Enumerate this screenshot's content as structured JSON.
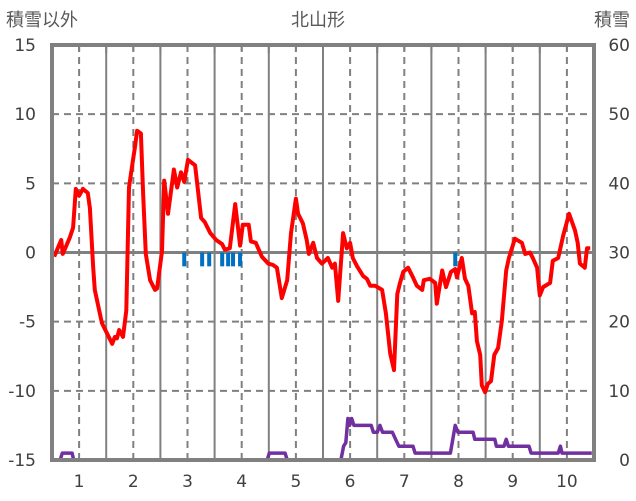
{
  "chart_data": {
    "type": "line",
    "title": "北山形",
    "ylabel_left": "積雪以外",
    "ylabel_right": "積雪",
    "xlim": [
      0.5,
      10.5
    ],
    "ylim_left": [
      -15,
      15
    ],
    "ylim_right": [
      0,
      60
    ],
    "x_ticks": [
      "1",
      "2",
      "3",
      "4",
      "5",
      "6",
      "7",
      "8",
      "9",
      "10"
    ],
    "y_ticks_left": [
      "15",
      "10",
      "5",
      "0",
      "-5",
      "-10",
      "-15"
    ],
    "y_ticks_right": [
      "60",
      "50",
      "40",
      "30",
      "20",
      "10",
      "0"
    ],
    "grid": true,
    "colors": {
      "temp": "#ff0000",
      "snow": "#7030a0",
      "bars": "#0070c0",
      "axis": "#808080"
    },
    "series": [
      {
        "name": "積雪以外",
        "axis": "left",
        "kind": "line",
        "color": "#ff0000",
        "points": [
          [
            0.54,
            -0.3
          ],
          [
            0.67,
            0.9
          ],
          [
            0.7,
            -0.1
          ],
          [
            0.83,
            1.1
          ],
          [
            0.89,
            1.8
          ],
          [
            0.94,
            4.6
          ],
          [
            1.0,
            4.1
          ],
          [
            1.07,
            4.6
          ],
          [
            1.16,
            4.3
          ],
          [
            1.2,
            3.2
          ],
          [
            1.26,
            -1.1
          ],
          [
            1.29,
            -2.7
          ],
          [
            1.42,
            -5.1
          ],
          [
            1.51,
            -5.8
          ],
          [
            1.61,
            -6.6
          ],
          [
            1.66,
            -6.1
          ],
          [
            1.7,
            -6.2
          ],
          [
            1.74,
            -5.6
          ],
          [
            1.81,
            -6.1
          ],
          [
            1.87,
            -4.2
          ],
          [
            1.92,
            4.7
          ],
          [
            1.98,
            6.3
          ],
          [
            2.03,
            7.6
          ],
          [
            2.07,
            8.8
          ],
          [
            2.14,
            8.6
          ],
          [
            2.18,
            4.3
          ],
          [
            2.23,
            -0.1
          ],
          [
            2.31,
            -2.0
          ],
          [
            2.4,
            -2.7
          ],
          [
            2.44,
            -2.6
          ],
          [
            2.53,
            0.1
          ],
          [
            2.57,
            5.2
          ],
          [
            2.64,
            2.8
          ],
          [
            2.75,
            6.0
          ],
          [
            2.81,
            4.7
          ],
          [
            2.88,
            5.8
          ],
          [
            2.94,
            5.1
          ],
          [
            3.01,
            6.7
          ],
          [
            3.14,
            6.3
          ],
          [
            3.25,
            2.5
          ],
          [
            3.32,
            2.2
          ],
          [
            3.42,
            1.4
          ],
          [
            3.53,
            0.9
          ],
          [
            3.64,
            0.6
          ],
          [
            3.69,
            0.2
          ],
          [
            3.78,
            0.3
          ],
          [
            3.88,
            3.5
          ],
          [
            3.97,
            0.5
          ],
          [
            4.02,
            2.0
          ],
          [
            4.13,
            2.0
          ],
          [
            4.17,
            0.8
          ],
          [
            4.26,
            0.7
          ],
          [
            4.37,
            -0.3
          ],
          [
            4.49,
            -0.8
          ],
          [
            4.58,
            -0.9
          ],
          [
            4.65,
            -1.1
          ],
          [
            4.74,
            -3.3
          ],
          [
            4.84,
            -2.0
          ],
          [
            4.91,
            1.4
          ],
          [
            5.0,
            3.9
          ],
          [
            5.04,
            2.8
          ],
          [
            5.13,
            2.1
          ],
          [
            5.2,
            0.9
          ],
          [
            5.24,
            -0.1
          ],
          [
            5.32,
            0.7
          ],
          [
            5.39,
            -0.4
          ],
          [
            5.48,
            -0.8
          ],
          [
            5.59,
            -0.4
          ],
          [
            5.67,
            -1.1
          ],
          [
            5.72,
            -0.8
          ],
          [
            5.78,
            -3.5
          ],
          [
            5.87,
            1.4
          ],
          [
            5.94,
            0.3
          ],
          [
            6.0,
            0.7
          ],
          [
            6.05,
            -0.4
          ],
          [
            6.13,
            -1.0
          ],
          [
            6.24,
            -1.7
          ],
          [
            6.31,
            -1.9
          ],
          [
            6.37,
            -2.4
          ],
          [
            6.46,
            -2.4
          ],
          [
            6.59,
            -2.7
          ],
          [
            6.66,
            -4.4
          ],
          [
            6.74,
            -7.3
          ],
          [
            6.81,
            -8.5
          ],
          [
            6.87,
            -3.0
          ],
          [
            6.92,
            -2.2
          ],
          [
            6.98,
            -1.4
          ],
          [
            7.07,
            -1.1
          ],
          [
            7.16,
            -1.8
          ],
          [
            7.23,
            -2.4
          ],
          [
            7.33,
            -2.7
          ],
          [
            7.36,
            -2.0
          ],
          [
            7.47,
            -1.9
          ],
          [
            7.57,
            -2.2
          ],
          [
            7.6,
            -3.7
          ],
          [
            7.7,
            -1.3
          ],
          [
            7.77,
            -2.5
          ],
          [
            7.86,
            -1.4
          ],
          [
            7.94,
            -1.2
          ],
          [
            7.97,
            -1.8
          ],
          [
            8.06,
            -0.4
          ],
          [
            8.12,
            -1.9
          ],
          [
            8.18,
            -2.4
          ],
          [
            8.25,
            -4.4
          ],
          [
            8.3,
            -4.3
          ],
          [
            8.34,
            -6.4
          ],
          [
            8.4,
            -7.4
          ],
          [
            8.43,
            -9.6
          ],
          [
            8.49,
            -10.1
          ],
          [
            8.54,
            -9.5
          ],
          [
            8.6,
            -9.3
          ],
          [
            8.66,
            -7.4
          ],
          [
            8.73,
            -6.9
          ],
          [
            8.8,
            -4.9
          ],
          [
            8.88,
            -1.3
          ],
          [
            8.93,
            -0.4
          ],
          [
            9.04,
            1.0
          ],
          [
            9.17,
            0.7
          ],
          [
            9.23,
            -0.1
          ],
          [
            9.32,
            0.0
          ],
          [
            9.37,
            -0.4
          ],
          [
            9.45,
            -1.1
          ],
          [
            9.5,
            -3.1
          ],
          [
            9.56,
            -2.5
          ],
          [
            9.69,
            -2.2
          ],
          [
            9.74,
            -0.6
          ],
          [
            9.84,
            -0.4
          ],
          [
            9.93,
            1.2
          ],
          [
            10.04,
            2.8
          ],
          [
            10.15,
            1.6
          ],
          [
            10.2,
            0.7
          ],
          [
            10.24,
            -0.8
          ],
          [
            10.33,
            -1.1
          ],
          [
            10.37,
            0.3
          ],
          [
            10.43,
            0.3
          ]
        ]
      },
      {
        "name": "積雪",
        "axis": "right",
        "kind": "line",
        "color": "#7030a0",
        "points": [
          [
            0.5,
            0
          ],
          [
            0.65,
            0
          ],
          [
            0.69,
            1
          ],
          [
            0.87,
            1
          ],
          [
            0.9,
            0
          ],
          [
            4.47,
            0
          ],
          [
            4.51,
            1
          ],
          [
            4.8,
            1
          ],
          [
            4.84,
            0
          ],
          [
            5.83,
            0
          ],
          [
            5.88,
            2
          ],
          [
            5.92,
            2.5
          ],
          [
            5.96,
            6
          ],
          [
            5.99,
            5
          ],
          [
            6.03,
            6
          ],
          [
            6.07,
            5
          ],
          [
            6.39,
            5
          ],
          [
            6.43,
            4
          ],
          [
            6.5,
            4
          ],
          [
            6.55,
            5
          ],
          [
            6.6,
            4
          ],
          [
            6.78,
            4
          ],
          [
            6.84,
            3
          ],
          [
            6.9,
            2
          ],
          [
            7.16,
            2
          ],
          [
            7.2,
            1
          ],
          [
            7.85,
            1
          ],
          [
            7.94,
            5
          ],
          [
            7.99,
            4
          ],
          [
            8.27,
            4
          ],
          [
            8.3,
            3
          ],
          [
            8.67,
            3
          ],
          [
            8.7,
            2
          ],
          [
            8.84,
            2
          ],
          [
            8.88,
            3
          ],
          [
            8.92,
            2
          ],
          [
            9.3,
            2
          ],
          [
            9.34,
            1
          ],
          [
            9.84,
            1
          ],
          [
            9.88,
            2
          ],
          [
            9.91,
            1
          ],
          [
            10.46,
            1
          ]
        ]
      },
      {
        "name": "bars",
        "axis": "left",
        "kind": "bar",
        "color": "#0070c0",
        "x": [
          2.94,
          3.27,
          3.4,
          3.64,
          3.75,
          3.84,
          3.97,
          7.94
        ],
        "values": [
          -1,
          -1,
          -1,
          -1,
          -1,
          -1,
          -1,
          -1
        ]
      }
    ]
  }
}
